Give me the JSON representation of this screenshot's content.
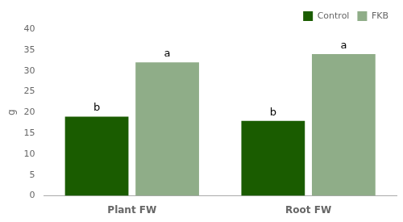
{
  "chart_data": {
    "type": "bar",
    "categories": [
      "Plant FW",
      "Root FW"
    ],
    "series": [
      {
        "name": "Control",
        "color": "#1a5c00",
        "values": [
          19.0,
          18.0
        ]
      },
      {
        "name": "FKB",
        "color": "#8fad88",
        "values": [
          32.0,
          34.0
        ]
      }
    ],
    "ylabel": "g",
    "ylim": [
      0,
      40
    ],
    "yticks": [
      0,
      5,
      10,
      15,
      20,
      25,
      30,
      35,
      40
    ],
    "annotations": [
      {
        "text": "b",
        "series": "Control",
        "category": "Plant FW"
      },
      {
        "text": "b",
        "series": "Control",
        "category": "Root FW"
      },
      {
        "text": "a",
        "series": "FKB",
        "category": "Plant FW"
      },
      {
        "text": "a",
        "series": "FKB",
        "category": "Root FW"
      }
    ],
    "grid": false,
    "legend": "upper right"
  }
}
